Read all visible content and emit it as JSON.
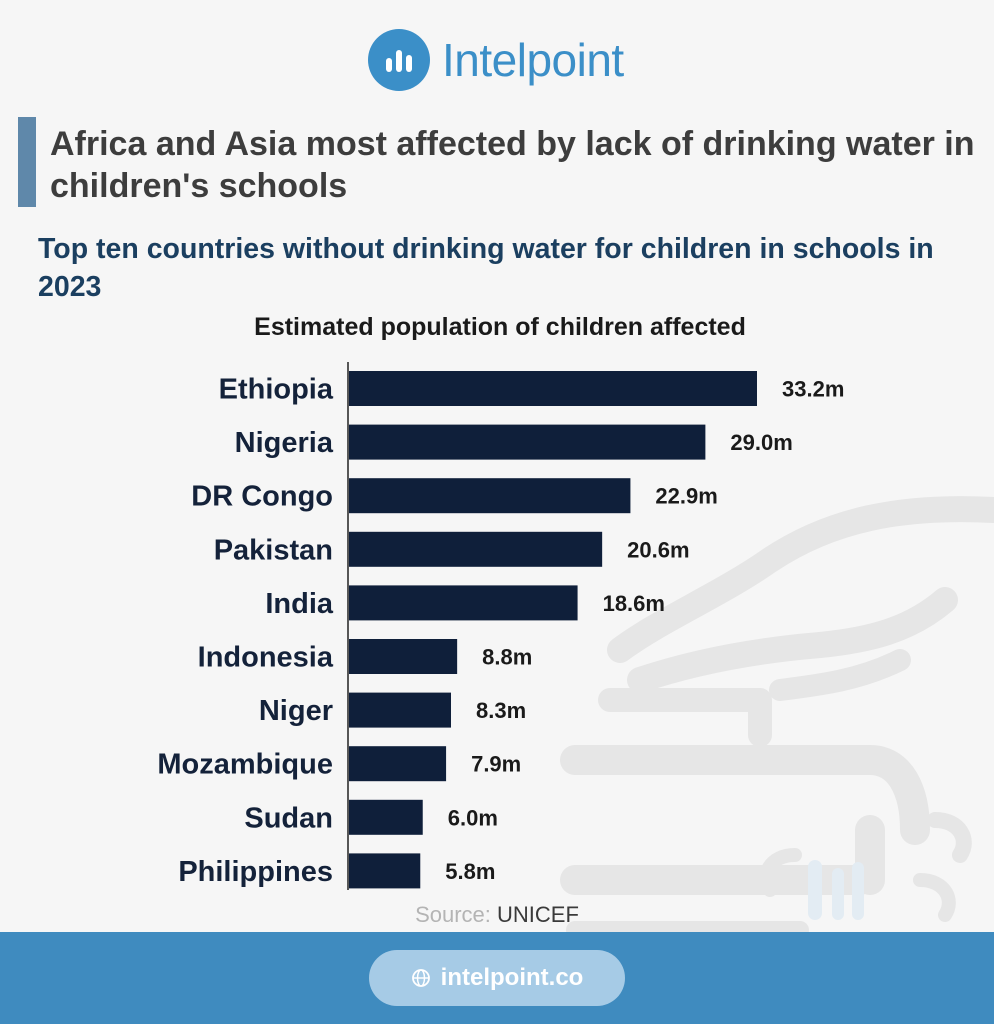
{
  "brand": {
    "name": "Intelpoint"
  },
  "headline": "Africa and Asia most affected by lack of drinking water in children's schools",
  "subtitle": "Top ten countries without drinking water for children in schools in 2023",
  "source": {
    "label": "Source:",
    "value": "UNICEF"
  },
  "footer": {
    "url": "intelpoint.co"
  },
  "colors": {
    "bar": "#0f1f3a",
    "brand": "#3b8fc8",
    "footer": "#3f8bbf",
    "accent": "#5f88aa"
  },
  "chart_data": {
    "type": "bar",
    "orientation": "horizontal",
    "title": "Estimated population of children affected",
    "categories": [
      "Ethiopia",
      "Nigeria",
      "DR Congo",
      "Pakistan",
      "India",
      "Indonesia",
      "Niger",
      "Mozambique",
      "Sudan",
      "Philippines"
    ],
    "values": [
      33.2,
      29.0,
      22.9,
      20.6,
      18.6,
      8.8,
      8.3,
      7.9,
      6.0,
      5.8
    ],
    "value_labels": [
      "33.2m",
      "29.0m",
      "22.9m",
      "20.6m",
      "18.6m",
      "8.8m",
      "8.3m",
      "7.9m",
      "6.0m",
      "5.8m"
    ],
    "unit": "m",
    "xlim": [
      0,
      33.2
    ],
    "grid": false,
    "legend": "none"
  }
}
